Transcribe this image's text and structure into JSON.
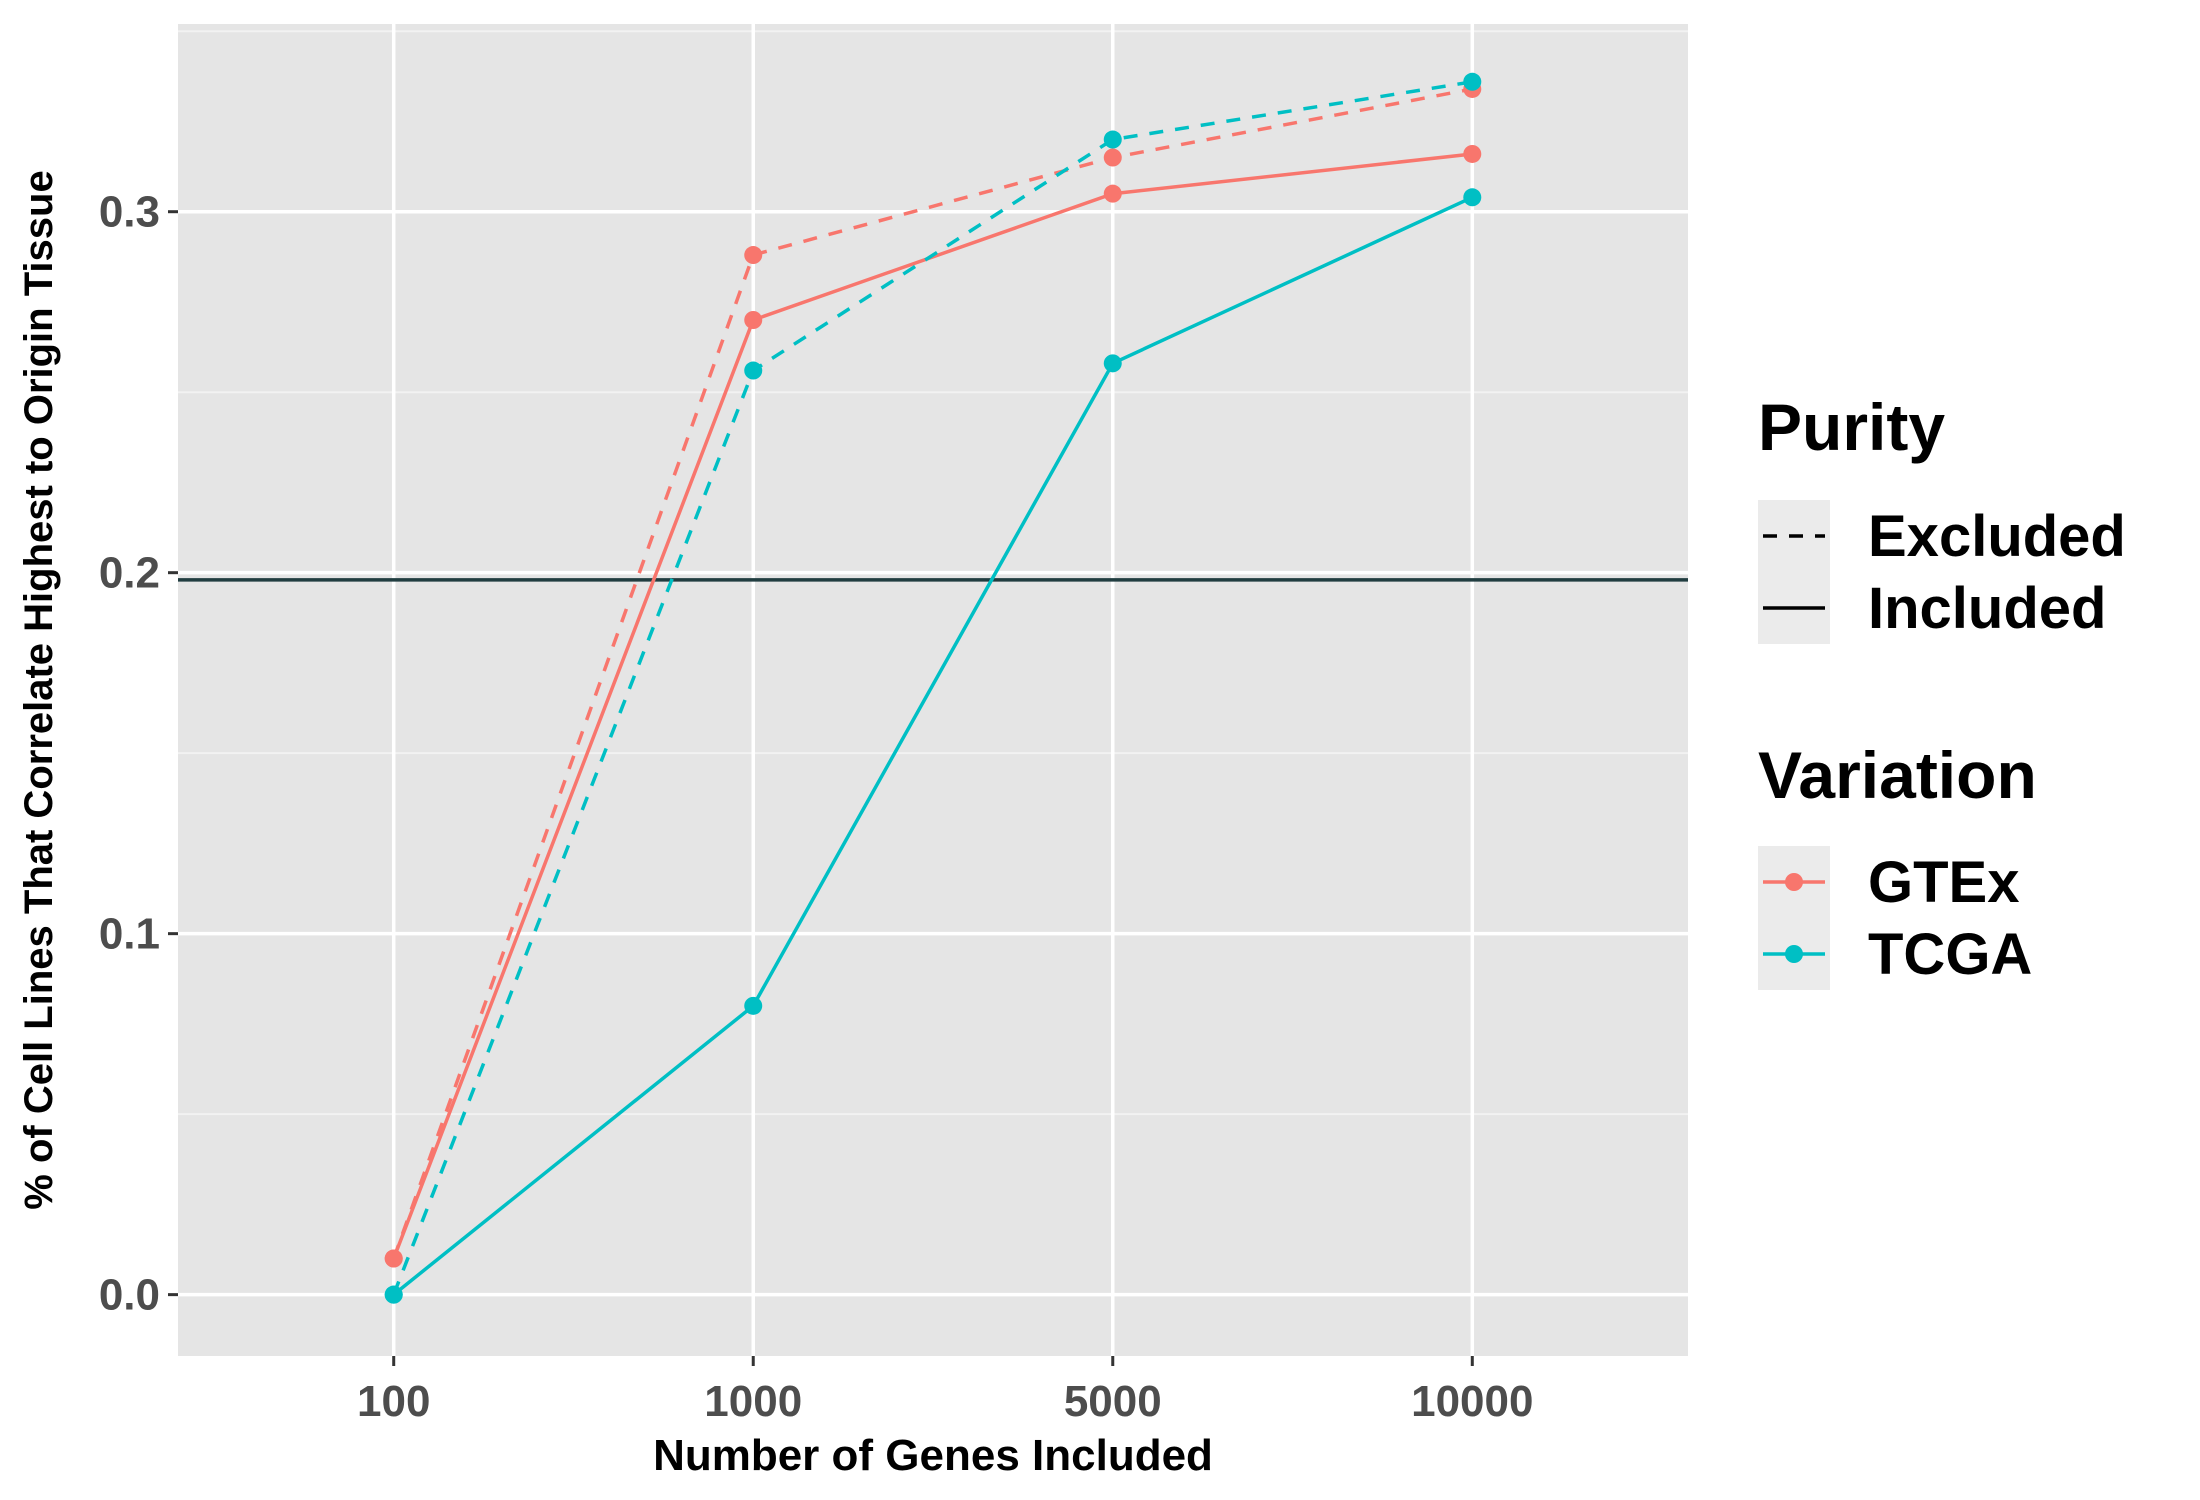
{
  "chart_data": {
    "type": "line",
    "title": "",
    "xlabel": "Number of Genes Included",
    "ylabel": "% of Cell Lines That Correlate Highest to Origin Tissue",
    "x_scale": "categorical",
    "categories": [
      "100",
      "1000",
      "5000",
      "10000"
    ],
    "ylim": [
      -0.017,
      0.352
    ],
    "y_ticks": [
      0.0,
      0.1,
      0.2,
      0.3
    ],
    "y_tick_labels": [
      "0.0",
      "0.1",
      "0.2",
      "0.3"
    ],
    "grid": true,
    "panel_background": "#e5e5e5",
    "reference_line": {
      "y": 0.198,
      "color": "#213d40"
    },
    "legend_position": "right",
    "legend": {
      "purity_title": "Purity",
      "purity_items": [
        {
          "label": "Excluded",
          "linetype": "dashed"
        },
        {
          "label": "Included",
          "linetype": "solid"
        }
      ],
      "variation_title": "Variation",
      "variation_items": [
        {
          "label": "GTEx",
          "color": "#F8766D"
        },
        {
          "label": "TCGA",
          "color": "#00BFC4"
        }
      ]
    },
    "series": [
      {
        "variation": "GTEx",
        "purity": "Excluded",
        "color": "#F8766D",
        "linetype": "dashed",
        "values": [
          0.01,
          0.288,
          0.315,
          0.334
        ]
      },
      {
        "variation": "GTEx",
        "purity": "Included",
        "color": "#F8766D",
        "linetype": "solid",
        "values": [
          0.01,
          0.27,
          0.305,
          0.316
        ]
      },
      {
        "variation": "TCGA",
        "purity": "Excluded",
        "color": "#00BFC4",
        "linetype": "dashed",
        "values": [
          0.0,
          0.256,
          0.32,
          0.336
        ]
      },
      {
        "variation": "TCGA",
        "purity": "Included",
        "color": "#00BFC4",
        "linetype": "solid",
        "values": [
          0.0,
          0.08,
          0.258,
          0.304
        ]
      }
    ]
  }
}
